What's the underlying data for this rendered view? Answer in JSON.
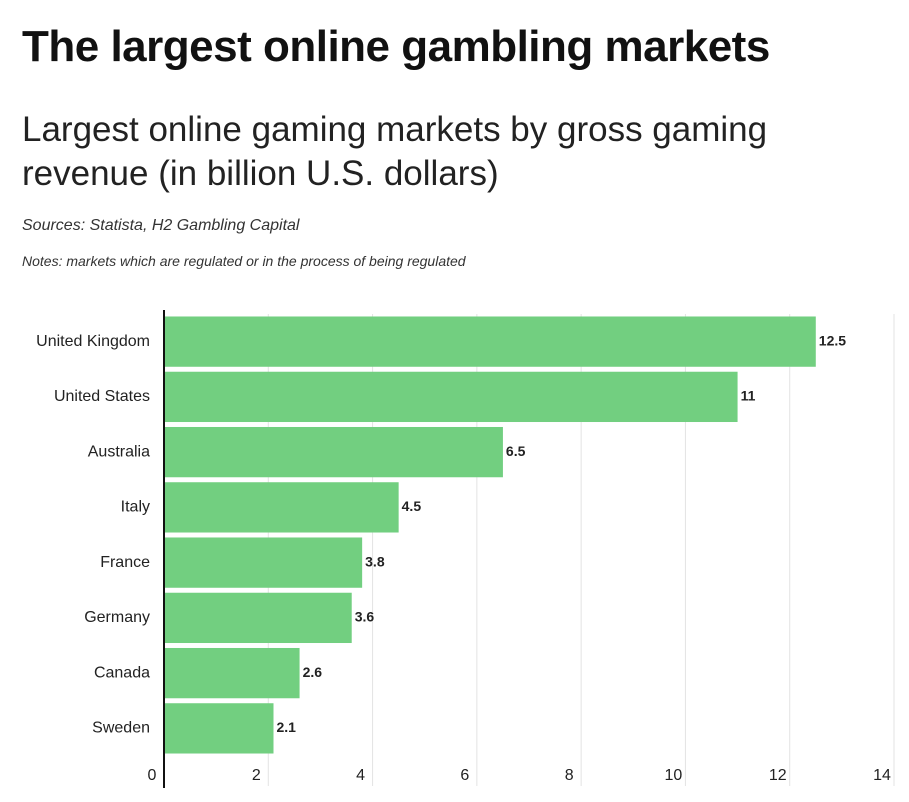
{
  "chart_data": {
    "type": "bar",
    "orientation": "horizontal",
    "title": "The largest online gambling markets",
    "subtitle": "Largest online gaming markets by gross gaming revenue (in billion U.S. dollars)",
    "sources": "Sources: Statista, H2 Gambling Capital",
    "notes": "Notes: markets which are regulated or in the process of being regulated",
    "categories": [
      "United Kingdom",
      "United States",
      "Australia",
      "Italy",
      "France",
      "Germany",
      "Canada",
      "Sweden"
    ],
    "values": [
      12.5,
      11,
      6.5,
      4.5,
      3.8,
      3.6,
      2.6,
      2.1
    ],
    "color": "#72cf80",
    "xlim": [
      0,
      14
    ],
    "xticks": [
      0,
      2,
      4,
      6,
      8,
      10,
      12,
      14
    ],
    "grid": true
  }
}
